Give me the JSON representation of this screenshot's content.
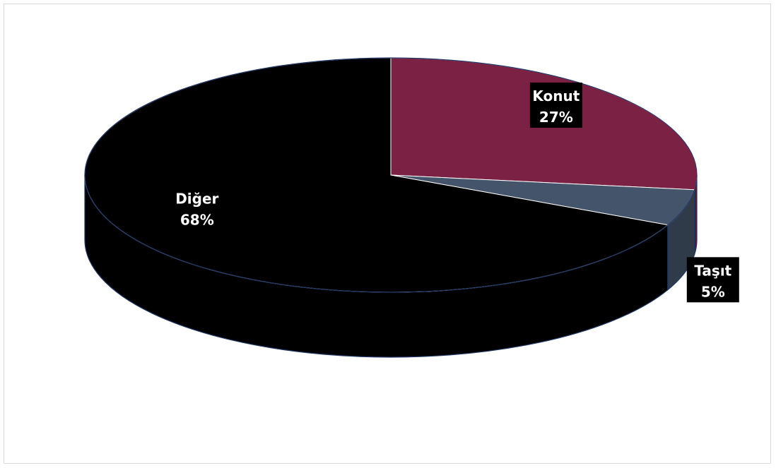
{
  "chart_data": {
    "type": "pie",
    "title": "",
    "slices": [
      {
        "label": "Konut",
        "value": 27,
        "percent_label": "27%",
        "color": "#7b2143"
      },
      {
        "label": "Taşıt",
        "value": 5,
        "percent_label": "5%",
        "color": "#44546a"
      },
      {
        "label": "Diğer",
        "value": 68,
        "percent_label": "68%",
        "color": "#000000"
      }
    ],
    "legend": "none",
    "style": "3d",
    "outline_color": "#1f3864"
  }
}
